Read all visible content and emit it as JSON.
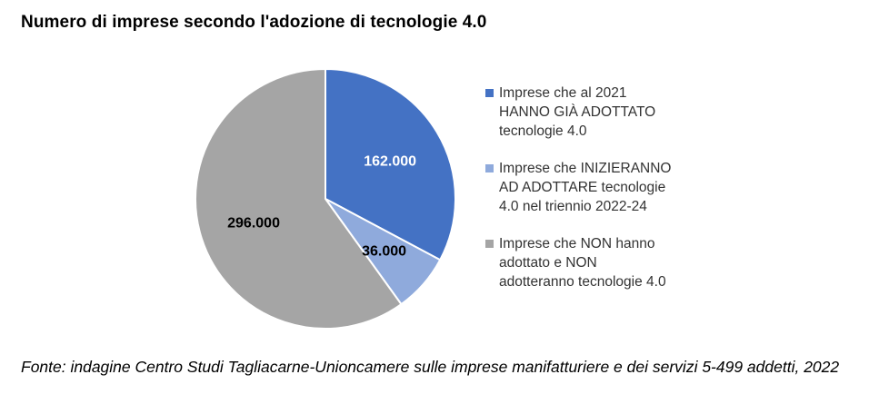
{
  "header": {
    "title": "Numero di imprese secondo l'adozione di tecnologie 4.0"
  },
  "chart_data": {
    "type": "pie",
    "title": "Numero di imprese secondo l'adozione di tecnologie 4.0",
    "slices": [
      {
        "label": "Imprese che al 2021\nHANNO GIÀ ADOTTATO\ntecnologie 4.0",
        "value": 162000,
        "display": "162.000",
        "color": "#4472C4",
        "label_color": "#ffffff"
      },
      {
        "label": "Imprese che INIZIERANNO\nAD ADOTTARE tecnologie\n4.0 nel triennio 2022-24",
        "value": 36000,
        "display": "36.000",
        "color": "#8FAADC",
        "label_color": "#000000"
      },
      {
        "label": "Imprese che NON hanno\nadottato e NON\nadotteranno tecnologie 4.0",
        "value": 296000,
        "display": "296.000",
        "color": "#A5A5A5",
        "label_color": "#000000"
      }
    ],
    "start_angle": "12 o'clock",
    "direction": "clockwise",
    "legend_position": "right"
  },
  "footer": {
    "source": "Fonte: indagine Centro Studi Tagliacarne-Unioncamere sulle imprese manifatturiere e dei servizi 5-499 addetti, 2022"
  }
}
